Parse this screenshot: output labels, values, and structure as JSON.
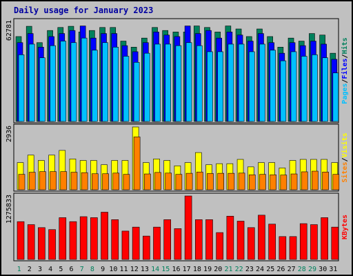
{
  "title": "Daily usage for January 2023",
  "colors": {
    "background": "#c0c0c0",
    "panel": "#c0c0c0",
    "title": "#0000a0",
    "hits": "#00805c",
    "files": "#0000ff",
    "pages": "#00c0ff",
    "visits": "#ffff00",
    "sites": "#ff8000",
    "kbytes": "#ff0000",
    "weekend_tick": "#00805c",
    "weekday_tick": "#000000"
  },
  "chart_data": [
    {
      "type": "bar",
      "panel": "top",
      "ymax_label": "62781",
      "ylim": [
        0,
        66000
      ],
      "categories": [
        "1",
        "2",
        "3",
        "4",
        "5",
        "6",
        "7",
        "8",
        "9",
        "10",
        "11",
        "12",
        "13",
        "14",
        "15",
        "16",
        "17",
        "18",
        "19",
        "20",
        "21",
        "22",
        "23",
        "24",
        "25",
        "26",
        "27",
        "28",
        "29",
        "30",
        "31"
      ],
      "weekend_days": [
        "1",
        "7",
        "8",
        "14",
        "15",
        "21",
        "22",
        "28",
        "29"
      ],
      "series": [
        {
          "name": "Hits",
          "color_key": "hits",
          "values": [
            56000,
            62781,
            52000,
            60000,
            62000,
            62781,
            59000,
            60000,
            62000,
            62000,
            53000,
            49000,
            55000,
            62000,
            60000,
            59000,
            59000,
            63000,
            62000,
            59000,
            63000,
            61000,
            56000,
            61000,
            56000,
            49000,
            55000,
            53000,
            58000,
            57000,
            45000
          ]
        },
        {
          "name": "Files",
          "color_key": "files",
          "values": [
            52000,
            58000,
            49000,
            56000,
            58000,
            60000,
            63000,
            55000,
            58000,
            58000,
            50000,
            46000,
            52000,
            59000,
            57000,
            56000,
            63000,
            58000,
            60000,
            55000,
            59000,
            57000,
            53000,
            58000,
            52000,
            45000,
            52000,
            50000,
            53000,
            51000,
            41000
          ]
        },
        {
          "name": "Pages",
          "color_key": "pages",
          "values": [
            44000,
            51000,
            42000,
            50000,
            53000,
            52000,
            55000,
            47000,
            52000,
            49000,
            43000,
            39000,
            45000,
            51000,
            51000,
            50000,
            52000,
            50000,
            46000,
            46000,
            51000,
            51000,
            46000,
            51000,
            47000,
            40000,
            46000,
            43000,
            44000,
            42000,
            32000
          ]
        }
      ],
      "series_labels_text": [
        "Pages",
        "Files",
        "Hits"
      ]
    },
    {
      "type": "bar",
      "panel": "middle",
      "ymax_label": "2936",
      "ylim": [
        0,
        2936
      ],
      "categories": [
        "1",
        "2",
        "3",
        "4",
        "5",
        "6",
        "7",
        "8",
        "9",
        "10",
        "11",
        "12",
        "13",
        "14",
        "15",
        "16",
        "17",
        "18",
        "19",
        "20",
        "21",
        "22",
        "23",
        "24",
        "25",
        "26",
        "27",
        "28",
        "29",
        "30",
        "31"
      ],
      "series": [
        {
          "name": "Visits",
          "color_key": "visits",
          "values": [
            1270,
            1620,
            1370,
            1620,
            1840,
            1440,
            1370,
            1370,
            1170,
            1370,
            1370,
            2936,
            1270,
            1440,
            1370,
            1120,
            1270,
            1740,
            1170,
            1220,
            1220,
            1420,
            1070,
            1270,
            1270,
            1020,
            1370,
            1420,
            1420,
            1420,
            1270
          ]
        },
        {
          "name": "Sites",
          "color_key": "sites",
          "values": [
            720,
            820,
            850,
            850,
            850,
            820,
            800,
            750,
            750,
            780,
            720,
            2470,
            740,
            810,
            780,
            720,
            770,
            830,
            760,
            770,
            770,
            780,
            700,
            720,
            700,
            690,
            740,
            840,
            870,
            830,
            720
          ]
        }
      ],
      "series_labels_text": [
        "Sites",
        "Visits"
      ]
    },
    {
      "type": "bar",
      "panel": "bottom",
      "ymax_label": "1275833",
      "ylim": [
        0,
        1275833
      ],
      "categories": [
        "1",
        "2",
        "3",
        "4",
        "5",
        "6",
        "7",
        "8",
        "9",
        "10",
        "11",
        "12",
        "13",
        "14",
        "15",
        "16",
        "17",
        "18",
        "19",
        "20",
        "21",
        "22",
        "23",
        "24",
        "25",
        "26",
        "27",
        "28",
        "29",
        "30",
        "31"
      ],
      "series": [
        {
          "name": "KBytes",
          "color_key": "kbytes",
          "values": [
            760000,
            700000,
            640000,
            600000,
            840000,
            760000,
            860000,
            840000,
            950000,
            800000,
            570000,
            650000,
            470000,
            650000,
            800000,
            620000,
            1275833,
            800000,
            800000,
            540000,
            870000,
            770000,
            640000,
            890000,
            710000,
            460000,
            460000,
            720000,
            700000,
            840000,
            650000
          ]
        }
      ],
      "series_labels_text": [
        "KBytes"
      ]
    }
  ]
}
